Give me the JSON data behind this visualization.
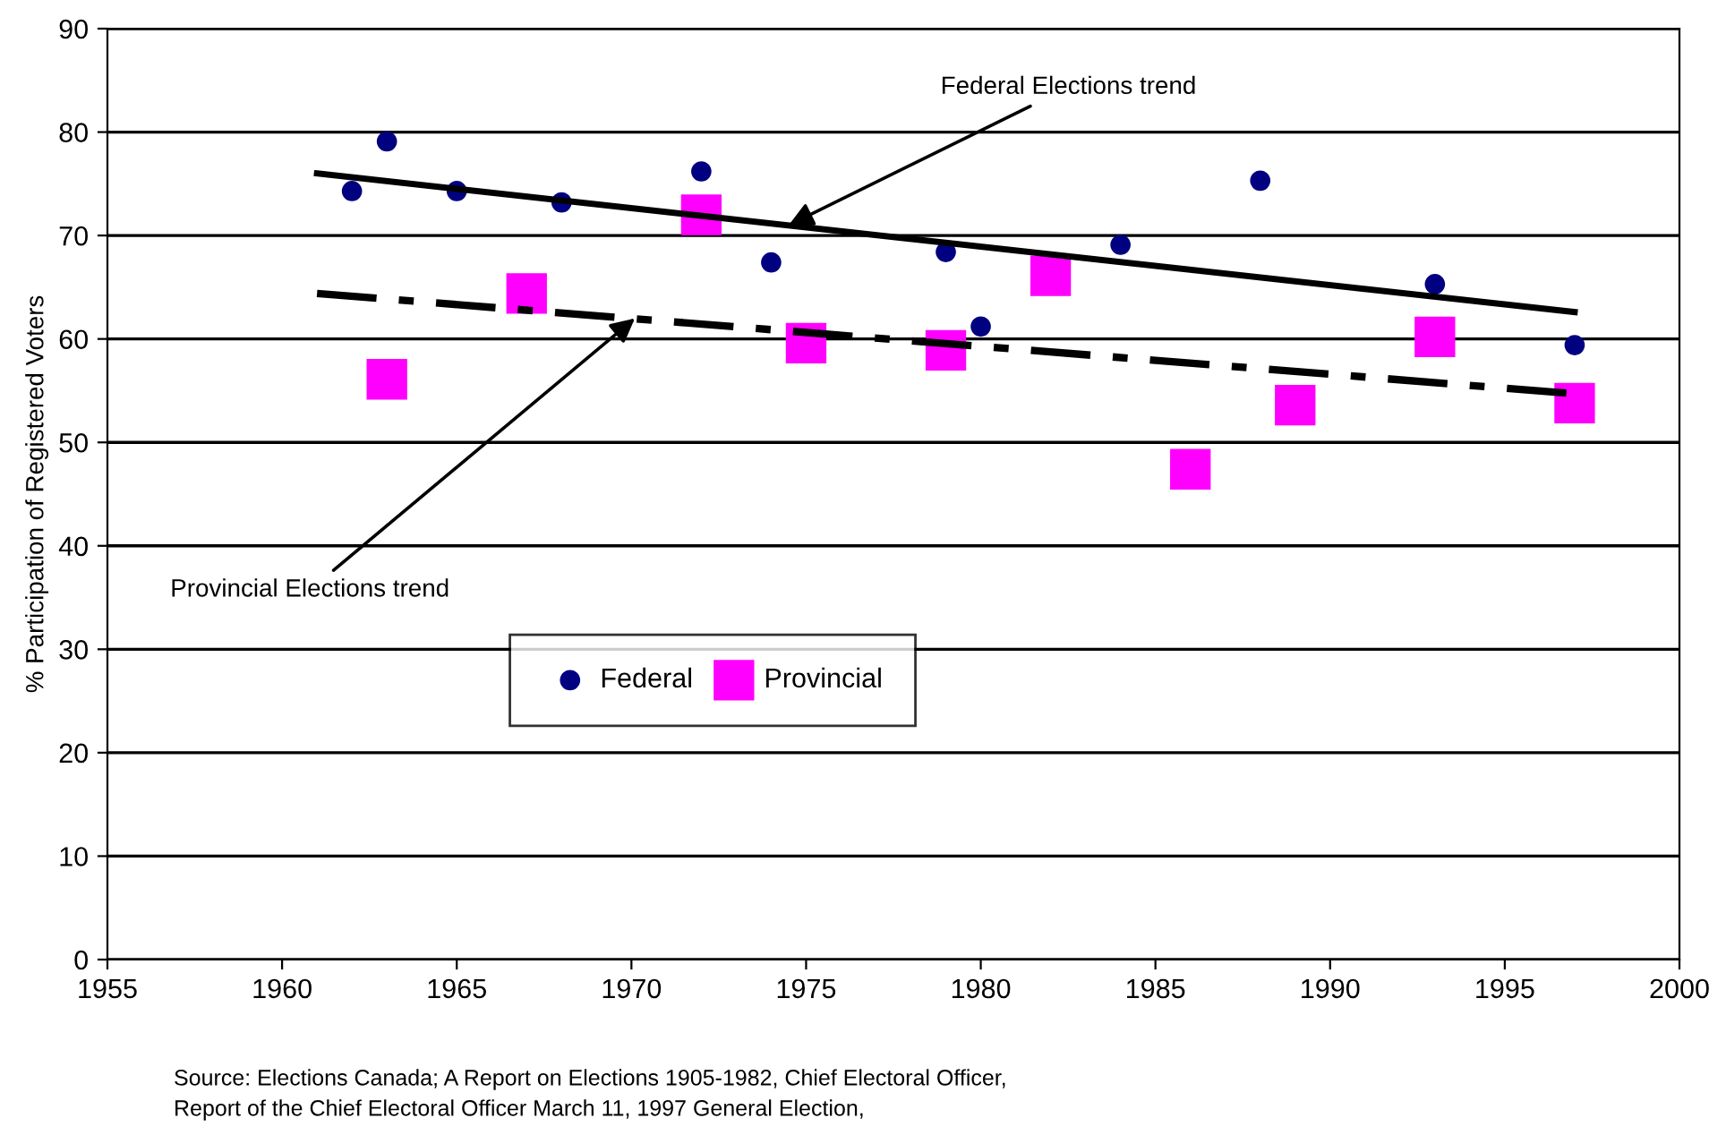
{
  "chart_data": {
    "type": "scatter",
    "ylabel": "% Participation of Registered Voters",
    "xlim": [
      1955,
      2000
    ],
    "xticks": [
      1955,
      1960,
      1965,
      1970,
      1975,
      1980,
      1985,
      1990,
      1995,
      2000
    ],
    "ylim": [
      0,
      90
    ],
    "yticks": [
      0,
      10,
      20,
      30,
      40,
      50,
      60,
      70,
      80,
      90
    ],
    "grid": "y",
    "legend": "center",
    "series": [
      {
        "name": "Federal",
        "color": "#000080",
        "marker": "circle",
        "x": [
          1962,
          1963,
          1965,
          1968,
          1972,
          1974,
          1979,
          1980,
          1984,
          1988,
          1993,
          1997
        ],
        "values": [
          74.3,
          79.1,
          74.3,
          73.2,
          76.2,
          67.4,
          68.4,
          61.2,
          69.1,
          75.3,
          65.3,
          59.4
        ]
      },
      {
        "name": "Provincial",
        "color": "#ff00ff",
        "marker": "square",
        "x": [
          1963,
          1967,
          1972,
          1975,
          1979,
          1982,
          1986,
          1989,
          1993,
          1997
        ],
        "values": [
          56.1,
          64.4,
          72.0,
          59.6,
          58.9,
          66.1,
          47.4,
          53.6,
          60.2,
          53.8
        ]
      },
      {
        "type": "line",
        "color": "#000000",
        "line_style": "solid",
        "marker": "none",
        "x": [
          1961,
          1997
        ],
        "values": [
          76.0,
          62.6
        ]
      },
      {
        "type": "line",
        "color": "#000000",
        "line_style": "dashed",
        "marker": "none",
        "x": [
          1961,
          1997
        ],
        "values": [
          64.4,
          54.7
        ]
      }
    ],
    "annotations": [
      {
        "text": "Federal Elections trend",
        "x": 1974.5,
        "y": 71.0
      },
      {
        "text": "Provincial Elections trend",
        "x": 1970.1,
        "y": 62.0
      },
      "Source: Elections Canada; A Report on Elections 1905-1982, Chief Electoral Officer,",
      "Report of the Chief Electoral Officer March 11, 1997 General Election,"
    ]
  }
}
